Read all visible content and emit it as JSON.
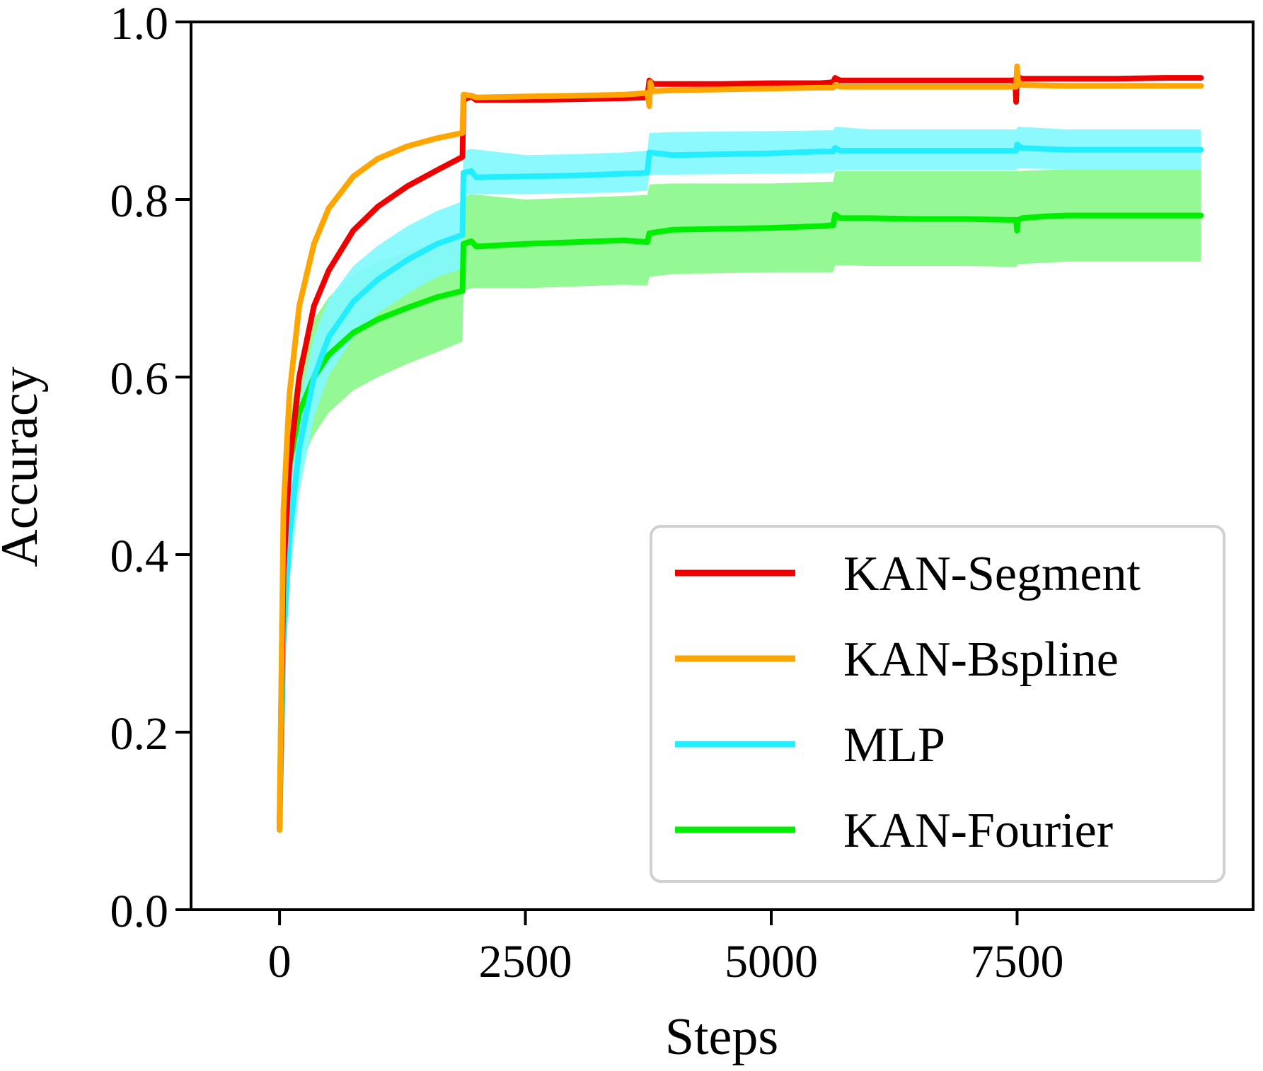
{
  "chart_data": {
    "type": "line",
    "xlabel": "Steps",
    "ylabel": "Accuracy",
    "xlim": [
      -900,
      9900
    ],
    "ylim": [
      0.0,
      1.0
    ],
    "xticks": [
      0,
      2500,
      5000,
      7500
    ],
    "xtick_labels": [
      "0",
      "2500",
      "5000",
      "7500"
    ],
    "yticks": [
      0.0,
      0.2,
      0.4,
      0.6,
      0.8,
      1.0
    ],
    "ytick_labels": [
      "0.0",
      "0.2",
      "0.4",
      "0.6",
      "0.8",
      "1.0"
    ],
    "grid": false,
    "legend_position": "lower-right",
    "series": [
      {
        "name": "KAN-Fourier",
        "color": "#00ee00",
        "band_color": "#88f888",
        "points": [
          [
            0,
            0.1
          ],
          [
            40,
            0.42
          ],
          [
            100,
            0.5
          ],
          [
            200,
            0.56
          ],
          [
            350,
            0.6
          ],
          [
            500,
            0.625
          ],
          [
            750,
            0.65
          ],
          [
            1000,
            0.665
          ],
          [
            1300,
            0.678
          ],
          [
            1600,
            0.69
          ],
          [
            1860,
            0.697
          ],
          [
            1870,
            0.75
          ],
          [
            1950,
            0.753
          ],
          [
            2000,
            0.747
          ],
          [
            2500,
            0.75
          ],
          [
            3000,
            0.752
          ],
          [
            3500,
            0.754
          ],
          [
            3740,
            0.752
          ],
          [
            3760,
            0.762
          ],
          [
            4000,
            0.766
          ],
          [
            4500,
            0.767
          ],
          [
            5000,
            0.768
          ],
          [
            5500,
            0.77
          ],
          [
            5630,
            0.771
          ],
          [
            5650,
            0.783
          ],
          [
            5700,
            0.779
          ],
          [
            6000,
            0.779
          ],
          [
            6500,
            0.778
          ],
          [
            7000,
            0.778
          ],
          [
            7450,
            0.777
          ],
          [
            7490,
            0.777
          ],
          [
            7500,
            0.765
          ],
          [
            7510,
            0.777
          ],
          [
            7550,
            0.779
          ],
          [
            7800,
            0.781
          ],
          [
            8000,
            0.782
          ],
          [
            8500,
            0.782
          ],
          [
            9000,
            0.782
          ],
          [
            9370,
            0.782
          ]
        ],
        "band": [
          [
            0,
            0.08,
            0.12
          ],
          [
            40,
            0.38,
            0.46
          ],
          [
            100,
            0.45,
            0.55
          ],
          [
            200,
            0.5,
            0.62
          ],
          [
            350,
            0.535,
            0.665
          ],
          [
            500,
            0.56,
            0.69
          ],
          [
            750,
            0.585,
            0.715
          ],
          [
            1000,
            0.6,
            0.73
          ],
          [
            1300,
            0.615,
            0.741
          ],
          [
            1600,
            0.628,
            0.752
          ],
          [
            1860,
            0.64,
            0.757
          ],
          [
            1870,
            0.697,
            0.803
          ],
          [
            1950,
            0.7,
            0.806
          ],
          [
            2500,
            0.7,
            0.8
          ],
          [
            3000,
            0.702,
            0.802
          ],
          [
            3500,
            0.704,
            0.804
          ],
          [
            3740,
            0.703,
            0.805
          ],
          [
            3760,
            0.713,
            0.817
          ],
          [
            4000,
            0.716,
            0.818
          ],
          [
            5000,
            0.718,
            0.818
          ],
          [
            5630,
            0.718,
            0.82
          ],
          [
            5650,
            0.726,
            0.832
          ],
          [
            6000,
            0.725,
            0.832
          ],
          [
            7000,
            0.725,
            0.832
          ],
          [
            7490,
            0.724,
            0.832
          ],
          [
            7510,
            0.727,
            0.832
          ],
          [
            8000,
            0.73,
            0.834
          ],
          [
            9370,
            0.73,
            0.834
          ]
        ]
      },
      {
        "name": "MLP",
        "color": "#22eeff",
        "band_color": "#80f8ff",
        "points": [
          [
            0,
            0.09
          ],
          [
            40,
            0.3
          ],
          [
            100,
            0.42
          ],
          [
            200,
            0.52
          ],
          [
            350,
            0.6
          ],
          [
            500,
            0.645
          ],
          [
            750,
            0.685
          ],
          [
            1000,
            0.71
          ],
          [
            1300,
            0.732
          ],
          [
            1600,
            0.75
          ],
          [
            1860,
            0.76
          ],
          [
            1870,
            0.83
          ],
          [
            1950,
            0.832
          ],
          [
            2000,
            0.825
          ],
          [
            2500,
            0.826
          ],
          [
            3000,
            0.827
          ],
          [
            3500,
            0.829
          ],
          [
            3740,
            0.83
          ],
          [
            3760,
            0.853
          ],
          [
            4000,
            0.85
          ],
          [
            4500,
            0.851
          ],
          [
            5000,
            0.852
          ],
          [
            5500,
            0.854
          ],
          [
            5630,
            0.854
          ],
          [
            5650,
            0.858
          ],
          [
            5700,
            0.855
          ],
          [
            6000,
            0.855
          ],
          [
            6500,
            0.855
          ],
          [
            7000,
            0.855
          ],
          [
            7490,
            0.855
          ],
          [
            7500,
            0.862
          ],
          [
            7550,
            0.858
          ],
          [
            8000,
            0.856
          ],
          [
            8500,
            0.856
          ],
          [
            9000,
            0.856
          ],
          [
            9370,
            0.856
          ]
        ],
        "band": [
          [
            0,
            0.08,
            0.1
          ],
          [
            40,
            0.26,
            0.34
          ],
          [
            100,
            0.37,
            0.47
          ],
          [
            200,
            0.47,
            0.57
          ],
          [
            350,
            0.555,
            0.645
          ],
          [
            500,
            0.602,
            0.688
          ],
          [
            750,
            0.645,
            0.725
          ],
          [
            1000,
            0.672,
            0.748
          ],
          [
            1300,
            0.694,
            0.77
          ],
          [
            1600,
            0.713,
            0.787
          ],
          [
            1860,
            0.722,
            0.798
          ],
          [
            1870,
            0.805,
            0.855
          ],
          [
            1950,
            0.806,
            0.857
          ],
          [
            2500,
            0.806,
            0.85
          ],
          [
            3000,
            0.807,
            0.851
          ],
          [
            3500,
            0.808,
            0.853
          ],
          [
            3740,
            0.81,
            0.855
          ],
          [
            3760,
            0.828,
            0.875
          ],
          [
            4000,
            0.828,
            0.876
          ],
          [
            5000,
            0.829,
            0.877
          ],
          [
            5630,
            0.83,
            0.878
          ],
          [
            5650,
            0.833,
            0.882
          ],
          [
            6000,
            0.833,
            0.879
          ],
          [
            7000,
            0.833,
            0.879
          ],
          [
            7490,
            0.833,
            0.879
          ],
          [
            7510,
            0.835,
            0.882
          ],
          [
            8000,
            0.834,
            0.879
          ],
          [
            9370,
            0.834,
            0.879
          ]
        ]
      },
      {
        "name": "KAN-Segment",
        "color": "#ee0000",
        "points": [
          [
            0,
            0.09
          ],
          [
            40,
            0.38
          ],
          [
            100,
            0.5
          ],
          [
            200,
            0.6
          ],
          [
            350,
            0.68
          ],
          [
            500,
            0.72
          ],
          [
            750,
            0.765
          ],
          [
            1000,
            0.792
          ],
          [
            1300,
            0.815
          ],
          [
            1600,
            0.833
          ],
          [
            1860,
            0.848
          ],
          [
            1870,
            0.912
          ],
          [
            1950,
            0.916
          ],
          [
            2000,
            0.912
          ],
          [
            2500,
            0.912
          ],
          [
            3000,
            0.913
          ],
          [
            3500,
            0.914
          ],
          [
            3740,
            0.915
          ],
          [
            3760,
            0.934
          ],
          [
            3800,
            0.93
          ],
          [
            4000,
            0.93
          ],
          [
            4500,
            0.93
          ],
          [
            5000,
            0.931
          ],
          [
            5500,
            0.931
          ],
          [
            5630,
            0.932
          ],
          [
            5650,
            0.937
          ],
          [
            5700,
            0.934
          ],
          [
            6000,
            0.934
          ],
          [
            6500,
            0.934
          ],
          [
            7000,
            0.934
          ],
          [
            7450,
            0.934
          ],
          [
            7480,
            0.935
          ],
          [
            7490,
            0.91
          ],
          [
            7500,
            0.945
          ],
          [
            7510,
            0.938
          ],
          [
            7550,
            0.936
          ],
          [
            8000,
            0.936
          ],
          [
            8500,
            0.936
          ],
          [
            9000,
            0.937
          ],
          [
            9370,
            0.937
          ]
        ]
      },
      {
        "name": "KAN-Bspline",
        "color": "#ffa500",
        "points": [
          [
            0,
            0.09
          ],
          [
            40,
            0.45
          ],
          [
            100,
            0.58
          ],
          [
            200,
            0.68
          ],
          [
            350,
            0.75
          ],
          [
            500,
            0.79
          ],
          [
            750,
            0.826
          ],
          [
            1000,
            0.846
          ],
          [
            1300,
            0.86
          ],
          [
            1600,
            0.869
          ],
          [
            1860,
            0.875
          ],
          [
            1870,
            0.918
          ],
          [
            1950,
            0.917
          ],
          [
            2000,
            0.915
          ],
          [
            2500,
            0.916
          ],
          [
            3000,
            0.917
          ],
          [
            3500,
            0.918
          ],
          [
            3740,
            0.92
          ],
          [
            3760,
            0.905
          ],
          [
            3770,
            0.932
          ],
          [
            3800,
            0.922
          ],
          [
            4000,
            0.923
          ],
          [
            4500,
            0.924
          ],
          [
            5000,
            0.925
          ],
          [
            5500,
            0.926
          ],
          [
            5630,
            0.926
          ],
          [
            5650,
            0.929
          ],
          [
            5700,
            0.927
          ],
          [
            6000,
            0.927
          ],
          [
            6500,
            0.927
          ],
          [
            7000,
            0.927
          ],
          [
            7490,
            0.927
          ],
          [
            7500,
            0.95
          ],
          [
            7510,
            0.933
          ],
          [
            7550,
            0.929
          ],
          [
            8000,
            0.928
          ],
          [
            8500,
            0.928
          ],
          [
            9000,
            0.928
          ],
          [
            9370,
            0.928
          ]
        ]
      }
    ]
  }
}
